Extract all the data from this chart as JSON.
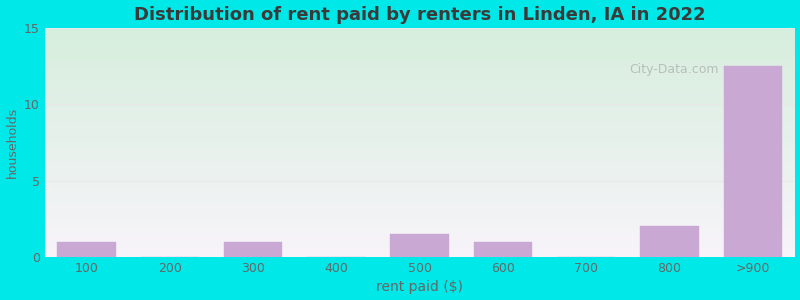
{
  "title": "Distribution of rent paid by renters in Linden, IA in 2022",
  "xlabel": "rent paid ($)",
  "ylabel": "households",
  "categories": [
    "100",
    "200",
    "300",
    "400",
    "500",
    "600",
    "700",
    "800",
    ">900"
  ],
  "values": [
    1,
    0,
    1,
    0,
    1.5,
    1,
    0,
    2,
    12.5
  ],
  "bar_color": "#c9a8d4",
  "ylim": [
    0,
    15
  ],
  "yticks": [
    0,
    5,
    10,
    15
  ],
  "bg_outer": "#00e8e8",
  "bg_grad_topleft": "#d6eedd",
  "bg_grad_bottomright": "#f8f4fa",
  "grid_color": "#e8e8e8",
  "title_color": "#3a3a3a",
  "label_color": "#666666",
  "watermark_text": "City-Data.com",
  "figsize": [
    8.0,
    3.0
  ],
  "dpi": 100
}
